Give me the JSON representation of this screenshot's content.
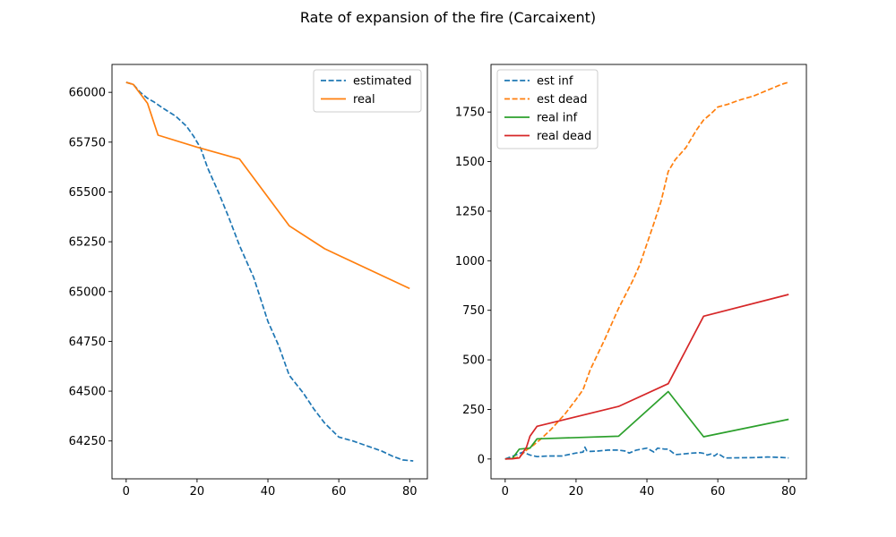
{
  "figure": {
    "title": "Rate of expansion of the fire (Carcaixent)"
  },
  "chart_data": [
    {
      "type": "line",
      "title": "",
      "xlabel": "",
      "ylabel": "",
      "xlim": [
        -4,
        85
      ],
      "ylim": [
        64060,
        66140
      ],
      "xticks": [
        0,
        20,
        40,
        60,
        80
      ],
      "yticks": [
        64250,
        64500,
        64750,
        65000,
        65250,
        65500,
        65750,
        66000
      ],
      "grid": false,
      "legend_position": "top-right",
      "series": [
        {
          "name": "estimated",
          "color": "#1f77b4",
          "dash": "dashed",
          "x": [
            0,
            2,
            4,
            6,
            8,
            10,
            14,
            17,
            19,
            21,
            23,
            26,
            29,
            32,
            36,
            40,
            43,
            46,
            50,
            53,
            56,
            60,
            64,
            68,
            72,
            75,
            78,
            81
          ],
          "y": [
            66050,
            66040,
            66000,
            65970,
            65950,
            65925,
            65880,
            65830,
            65780,
            65720,
            65620,
            65500,
            65370,
            65230,
            65070,
            64850,
            64730,
            64580,
            64490,
            64410,
            64340,
            64270,
            64250,
            64225,
            64200,
            64175,
            64155,
            64150
          ]
        },
        {
          "name": "real",
          "color": "#ff7f0e",
          "dash": "solid",
          "x": [
            0,
            2,
            6,
            9,
            20,
            32,
            46,
            56,
            80
          ],
          "y": [
            66050,
            66040,
            65945,
            65785,
            65725,
            65665,
            65330,
            65215,
            65015
          ]
        }
      ]
    },
    {
      "type": "line",
      "title": "",
      "xlabel": "",
      "ylabel": "",
      "xlim": [
        -4,
        85
      ],
      "ylim": [
        -100,
        1990
      ],
      "xticks": [
        0,
        20,
        40,
        60,
        80
      ],
      "yticks": [
        0,
        250,
        500,
        750,
        1000,
        1250,
        1500,
        1750
      ],
      "grid": false,
      "legend_position": "top-left",
      "series": [
        {
          "name": "est inf",
          "color": "#1f77b4",
          "dash": "dashed",
          "x": [
            0,
            3,
            5,
            7,
            9,
            12,
            16,
            20,
            22,
            22.5,
            23,
            24,
            26,
            29,
            32,
            34,
            35,
            37,
            40,
            42,
            43,
            45,
            46,
            48,
            50,
            53,
            55,
            56,
            57,
            58,
            59,
            60,
            62,
            66,
            70,
            74,
            78,
            80
          ],
          "y": [
            0,
            20,
            35,
            20,
            12,
            15,
            15,
            30,
            35,
            60,
            42,
            38,
            40,
            45,
            45,
            40,
            30,
            45,
            55,
            35,
            55,
            50,
            50,
            22,
            25,
            30,
            32,
            28,
            20,
            25,
            15,
            28,
            5,
            6,
            7,
            10,
            8,
            5
          ]
        },
        {
          "name": "est dead",
          "color": "#ff7f0e",
          "dash": "dashed",
          "x": [
            0,
            2,
            4,
            6,
            8,
            10,
            13,
            17,
            20,
            22,
            24,
            28,
            32,
            36,
            38,
            42,
            44,
            46,
            48,
            51,
            54,
            56,
            58,
            60,
            63,
            66,
            70,
            74,
            78,
            80
          ],
          "y": [
            0,
            2,
            10,
            45,
            70,
            100,
            150,
            230,
            300,
            350,
            450,
            600,
            760,
            900,
            980,
            1190,
            1300,
            1450,
            1510,
            1570,
            1660,
            1710,
            1740,
            1775,
            1790,
            1810,
            1830,
            1860,
            1890,
            1900
          ]
        },
        {
          "name": "real inf",
          "color": "#2ca02c",
          "dash": "solid",
          "x": [
            0,
            2,
            4,
            7,
            9,
            32,
            46,
            56,
            80
          ],
          "y": [
            0,
            2,
            50,
            55,
            102,
            115,
            340,
            112,
            200
          ]
        },
        {
          "name": "real dead",
          "color": "#d62728",
          "dash": "solid",
          "x": [
            0,
            2,
            4,
            6,
            7,
            9,
            32,
            46,
            56,
            80
          ],
          "y": [
            0,
            1,
            5,
            60,
            115,
            165,
            265,
            380,
            720,
            830
          ]
        }
      ]
    }
  ]
}
